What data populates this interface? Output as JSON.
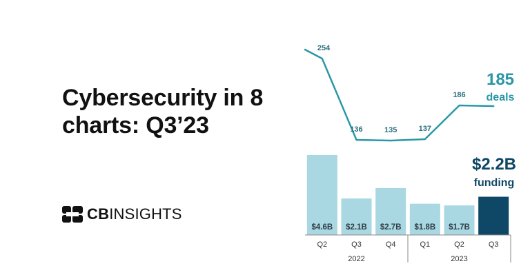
{
  "title_line1": "Cybersecurity in 8",
  "title_line2": "charts: Q3’23",
  "logo": {
    "bold": "CB",
    "rest": "INSIGHTS"
  },
  "colors": {
    "line": "#2a97a6",
    "bar": "#a9d8e2",
    "bar_highlight": "#0e4866",
    "bar_label": "#2f3d45",
    "line_label": "#2a6f7e",
    "headline_deals": "#2a97a6",
    "headline_funding": "#0e4866"
  },
  "chart_data": [
    {
      "type": "line",
      "categories": [
        "Q2",
        "Q3",
        "Q4",
        "Q1",
        "Q2",
        "Q3"
      ],
      "values": [
        254,
        136,
        135,
        137,
        186,
        185
      ],
      "data_labels": [
        "254",
        "136",
        "135",
        "137",
        "186",
        ""
      ],
      "summary": {
        "value": "185",
        "unit": "deals"
      }
    },
    {
      "type": "bar",
      "categories": [
        "Q2",
        "Q3",
        "Q4",
        "Q1",
        "Q2",
        "Q3"
      ],
      "years": [
        {
          "label": "2022",
          "count": 3
        },
        {
          "label": "2023",
          "count": 3
        }
      ],
      "values": [
        4.6,
        2.1,
        2.7,
        1.8,
        1.7,
        2.2
      ],
      "data_labels": [
        "$4.6B",
        "$2.1B",
        "$2.7B",
        "$1.8B",
        "$1.7B",
        ""
      ],
      "highlight_index": 5,
      "summary": {
        "value": "$2.2B",
        "unit": "funding"
      }
    }
  ]
}
